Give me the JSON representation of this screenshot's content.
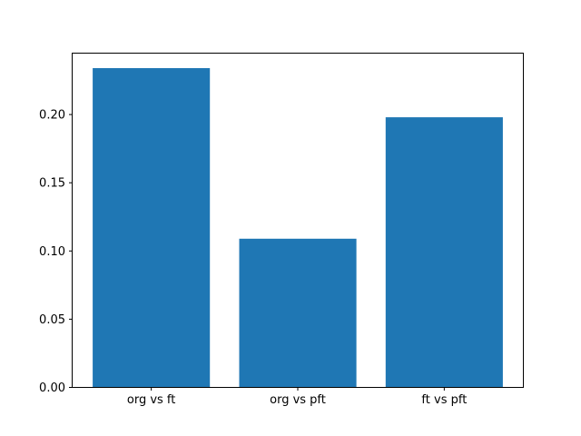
{
  "chart_data": {
    "type": "bar",
    "title": "",
    "xlabel": "",
    "ylabel": "",
    "categories": [
      "org vs ft",
      "org vs pft",
      "ft vs pft"
    ],
    "values": [
      0.234,
      0.109,
      0.198
    ],
    "ylim": [
      0,
      0.245
    ],
    "yticks": [
      0.0,
      0.05,
      0.1,
      0.15,
      0.2
    ],
    "ytick_labels": [
      "0.00",
      "0.05",
      "0.10",
      "0.15",
      "0.20"
    ],
    "grid": false,
    "legend": false,
    "bar_color": "#1f77b4",
    "axes_color": "#000000",
    "background_color": "#ffffff"
  }
}
